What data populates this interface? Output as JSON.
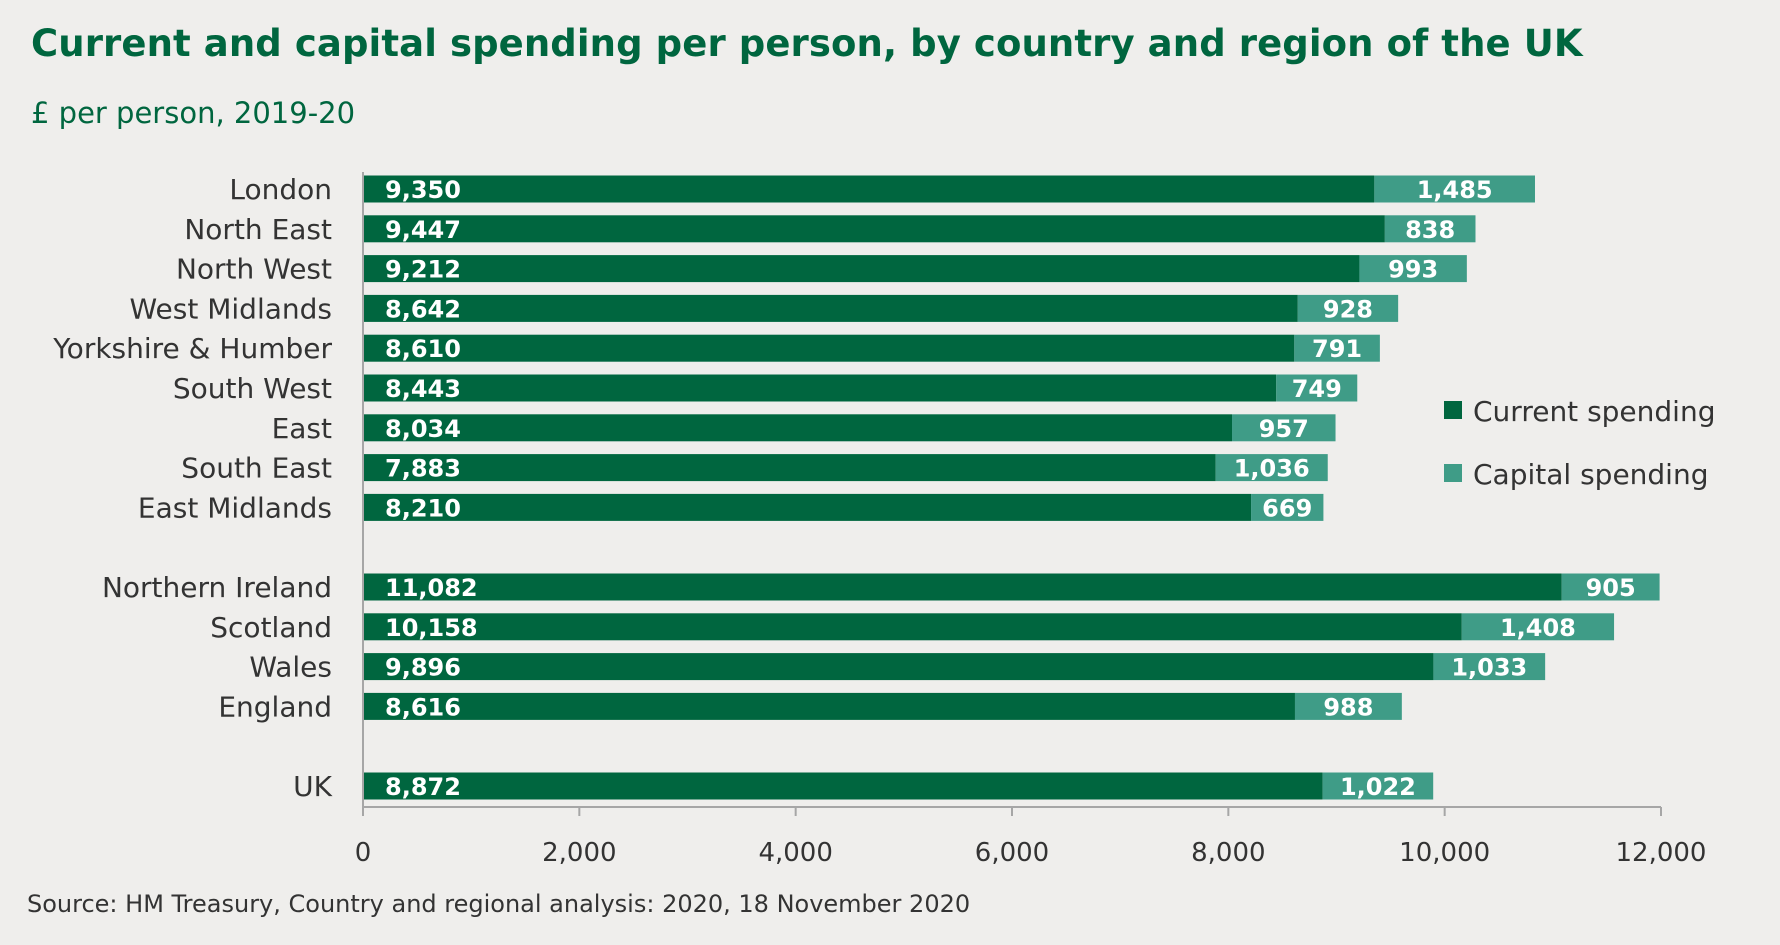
{
  "header": {
    "title": "Current and capital spending per person, by country and region of the UK",
    "subtitle": "£ per person, 2019-20"
  },
  "footer": {
    "source": "Source: HM Treasury, Country and regional analysis: 2020, 18 November 2020"
  },
  "colors": {
    "current": "#00663f",
    "capital": "#3f9c87",
    "axis": "#a6a6a6",
    "text": "#333333",
    "background": "#efeeec"
  },
  "chart_data": {
    "type": "bar",
    "orientation": "horizontal",
    "stacked": true,
    "title": "Current and capital spending per person, by country and region of the UK",
    "subtitle": "£ per person, 2019-20",
    "categories": [
      "London",
      "North East",
      "North West",
      "West Midlands",
      "Yorkshire & Humber",
      "South West",
      "East",
      "South East",
      "East Midlands",
      "Northern Ireland",
      "Scotland",
      "Wales",
      "England",
      "UK"
    ],
    "groups": [
      [
        "London",
        "North East",
        "North West",
        "West Midlands",
        "Yorkshire & Humber",
        "South West",
        "East",
        "South East",
        "East Midlands"
      ],
      [
        "Northern Ireland",
        "Scotland",
        "Wales",
        "England"
      ],
      [
        "UK"
      ]
    ],
    "series": [
      {
        "name": "Current spending",
        "values": [
          9350,
          9447,
          9212,
          8642,
          8610,
          8443,
          8034,
          7883,
          8210,
          11082,
          10158,
          9896,
          8616,
          8872
        ]
      },
      {
        "name": "Capital spending",
        "values": [
          1485,
          838,
          993,
          928,
          791,
          749,
          957,
          1036,
          669,
          905,
          1408,
          1033,
          988,
          1022
        ]
      }
    ],
    "value_labels": {
      "current": [
        "9,350",
        "9,447",
        "9,212",
        "8,642",
        "8,610",
        "8,443",
        "8,034",
        "7,883",
        "8,210",
        "11,082",
        "10,158",
        "9,896",
        "8,616",
        "8,872"
      ],
      "capital": [
        "1,485",
        "838",
        "993",
        "928",
        "791",
        "749",
        "957",
        "1,036",
        "669",
        "905",
        "1,408",
        "1,033",
        "988",
        "1,022"
      ]
    },
    "xlim": [
      0,
      12000
    ],
    "xticks": [
      0,
      2000,
      4000,
      6000,
      8000,
      10000,
      12000
    ],
    "xtick_labels": [
      "0",
      "2,000",
      "4,000",
      "6,000",
      "8,000",
      "10,000",
      "12,000"
    ],
    "grid": false,
    "legend_position": "right",
    "source": "Source: HM Treasury, Country and regional analysis: 2020, 18 November 2020"
  }
}
